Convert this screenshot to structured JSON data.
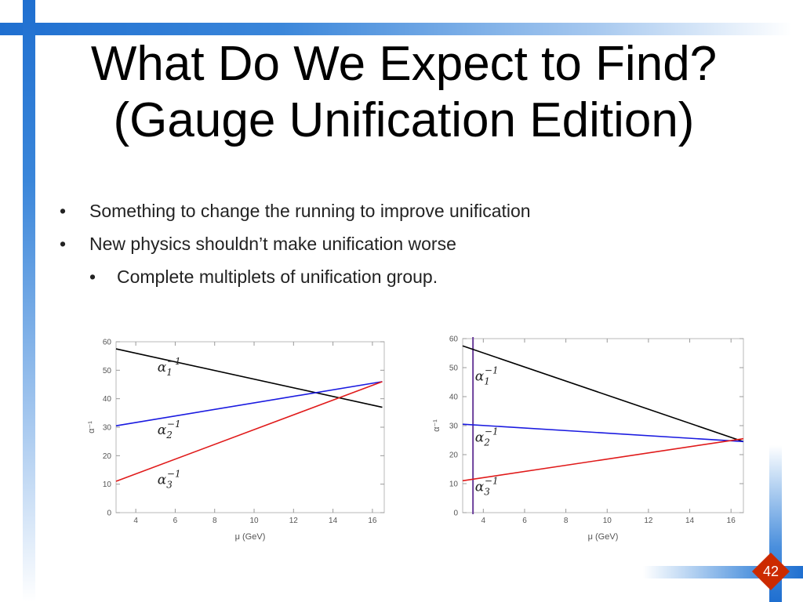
{
  "slide": {
    "title_line1": "What Do We Expect to Find?",
    "title_line2": "(Gauge Unification Edition)",
    "bullets": [
      "Something to change the running to improve unification",
      "New physics shouldn’t make unification worse"
    ],
    "sub_bullets": [
      "Complete multiplets of unification group."
    ],
    "bullet_char": "•",
    "slide_number": "42",
    "colors": {
      "frame_blue": "#1f6fd0",
      "slide_number_bg": "#cc2a00"
    }
  },
  "chart_data": [
    {
      "type": "line",
      "xlabel": "μ (GeV)",
      "ylabel": "α⁻¹",
      "xlim": [
        3,
        16.6
      ],
      "ylim": [
        0,
        60
      ],
      "xticks": [
        4,
        6,
        8,
        10,
        12,
        14,
        16
      ],
      "yticks": [
        0,
        10,
        20,
        30,
        40,
        50,
        60
      ],
      "series": [
        {
          "name": "α1⁻¹",
          "base": "α",
          "sub": "1",
          "sup": "−1",
          "color": "#000000",
          "x": [
            3.0,
            16.5
          ],
          "y": [
            57.5,
            37.0
          ],
          "label_at": [
            5.1,
            49.5
          ]
        },
        {
          "name": "α2⁻¹",
          "base": "α",
          "sub": "2",
          "sup": "−1",
          "color": "#1a1ae0",
          "x": [
            3.0,
            16.5
          ],
          "y": [
            30.5,
            46.0
          ],
          "label_at": [
            5.1,
            27.5
          ]
        },
        {
          "name": "α3⁻¹",
          "base": "α",
          "sub": "3",
          "sup": "−1",
          "color": "#e01a1a",
          "x": [
            3.0,
            16.5
          ],
          "y": [
            11.0,
            46.0
          ],
          "label_at": [
            5.1,
            10.0
          ]
        }
      ],
      "vlines": []
    },
    {
      "type": "line",
      "xlabel": "μ (GeV)",
      "ylabel": "α⁻¹",
      "xlim": [
        3,
        16.6
      ],
      "ylim": [
        0,
        60
      ],
      "xticks": [
        4,
        6,
        8,
        10,
        12,
        14,
        16
      ],
      "yticks": [
        0,
        10,
        20,
        30,
        40,
        50,
        60
      ],
      "series": [
        {
          "name": "α1⁻¹",
          "base": "α",
          "sub": "1",
          "sup": "−1",
          "color": "#000000",
          "x": [
            3.0,
            16.6
          ],
          "y": [
            57.5,
            24.5
          ],
          "label_at": [
            3.6,
            45.5
          ]
        },
        {
          "name": "α2⁻¹",
          "base": "α",
          "sub": "2",
          "sup": "−1",
          "color": "#1a1ae0",
          "x": [
            3.0,
            16.6
          ],
          "y": [
            30.5,
            24.5
          ],
          "label_at": [
            3.6,
            24.5
          ]
        },
        {
          "name": "α3⁻¹",
          "base": "α",
          "sub": "3",
          "sup": "−1",
          "color": "#e01a1a",
          "x": [
            3.0,
            16.6
          ],
          "y": [
            11.0,
            25.5
          ],
          "label_at": [
            3.6,
            7.5
          ]
        }
      ],
      "vlines": [
        {
          "x": 3.5,
          "color": "#6a3d9a"
        }
      ]
    }
  ]
}
